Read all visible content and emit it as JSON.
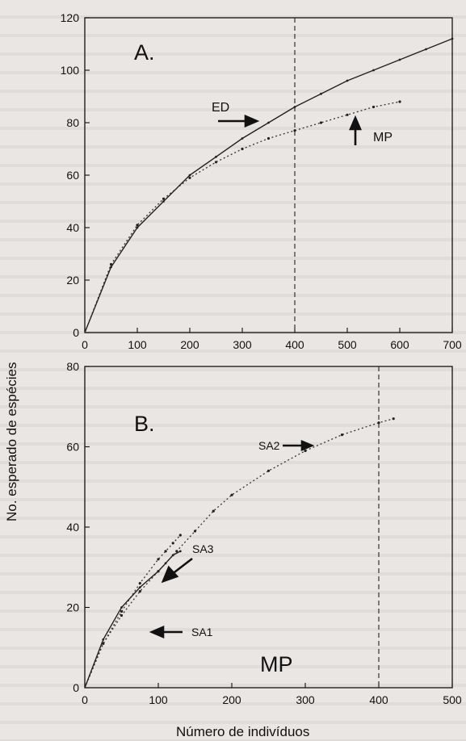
{
  "y_label": "No. esperado de espécies",
  "x_label": "Número de indivíduos",
  "chart_data": [
    {
      "type": "line",
      "panel": "A.",
      "xlim": [
        0,
        700
      ],
      "ylim": [
        0,
        120
      ],
      "x_ticks": [
        0,
        100,
        200,
        300,
        400,
        500,
        600,
        700
      ],
      "y_ticks": [
        0,
        20,
        40,
        60,
        80,
        100,
        120
      ],
      "reference_x": 400,
      "series": [
        {
          "name": "ED",
          "style": "solid",
          "points": [
            [
              0,
              0
            ],
            [
              50,
              25
            ],
            [
              100,
              40
            ],
            [
              150,
              50
            ],
            [
              200,
              60
            ],
            [
              250,
              67
            ],
            [
              300,
              74
            ],
            [
              350,
              80
            ],
            [
              400,
              86
            ],
            [
              450,
              91
            ],
            [
              500,
              96
            ],
            [
              550,
              100
            ],
            [
              600,
              104
            ],
            [
              650,
              108
            ],
            [
              700,
              112
            ]
          ]
        },
        {
          "name": "MP",
          "style": "dotted",
          "points": [
            [
              0,
              0
            ],
            [
              50,
              26
            ],
            [
              100,
              41
            ],
            [
              150,
              51
            ],
            [
              200,
              59
            ],
            [
              250,
              65
            ],
            [
              300,
              70
            ],
            [
              350,
              74
            ],
            [
              400,
              77
            ],
            [
              450,
              80
            ],
            [
              500,
              83
            ],
            [
              550,
              86
            ],
            [
              600,
              88
            ]
          ]
        }
      ],
      "labels": {
        "ed": "ED",
        "mp": "MP"
      }
    },
    {
      "type": "line",
      "panel": "B.",
      "xlim": [
        0,
        500
      ],
      "ylim": [
        0,
        80
      ],
      "x_ticks": [
        0,
        100,
        200,
        300,
        400,
        500
      ],
      "y_ticks": [
        0,
        20,
        40,
        60,
        80
      ],
      "reference_x": 400,
      "series": [
        {
          "name": "SA2",
          "style": "dotted",
          "points": [
            [
              0,
              0
            ],
            [
              25,
              11
            ],
            [
              50,
              18
            ],
            [
              75,
              24
            ],
            [
              100,
              29
            ],
            [
              125,
              34
            ],
            [
              150,
              39
            ],
            [
              175,
              44
            ],
            [
              200,
              48
            ],
            [
              250,
              54
            ],
            [
              300,
              59
            ],
            [
              350,
              63
            ],
            [
              400,
              66
            ],
            [
              420,
              67
            ]
          ]
        },
        {
          "name": "SA3",
          "style": "dotted",
          "points": [
            [
              0,
              0
            ],
            [
              25,
              11
            ],
            [
              50,
              19
            ],
            [
              75,
              26
            ],
            [
              100,
              32
            ],
            [
              110,
              34
            ],
            [
              120,
              36
            ],
            [
              130,
              38
            ]
          ]
        },
        {
          "name": "SA1",
          "style": "solid",
          "points": [
            [
              0,
              0
            ],
            [
              25,
              12
            ],
            [
              50,
              20
            ],
            [
              75,
              25
            ],
            [
              100,
              29
            ],
            [
              110,
              31
            ],
            [
              120,
              33
            ],
            [
              130,
              34
            ]
          ]
        }
      ],
      "labels": {
        "sa1": "SA1",
        "sa2": "SA2",
        "sa3": "SA3",
        "mp": "MP"
      }
    }
  ]
}
